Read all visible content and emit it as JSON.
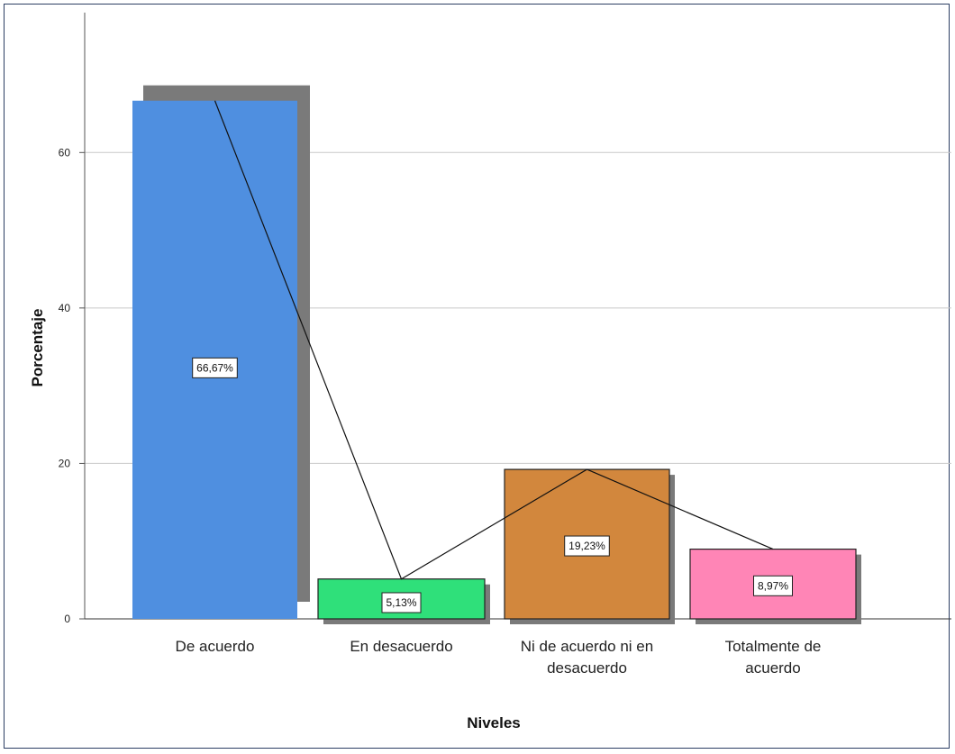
{
  "chart_data": {
    "type": "bar",
    "categories": [
      [
        "De acuerdo"
      ],
      [
        "En desacuerdo"
      ],
      [
        "Ni de acuerdo ni en",
        "desacuerdo"
      ],
      [
        "Totalmente de",
        "acuerdo"
      ]
    ],
    "values": [
      66.67,
      5.13,
      19.23,
      8.97
    ],
    "data_labels": [
      "66,67%",
      "5,13%",
      "19,23%",
      "8,97%"
    ],
    "colors": [
      "#4f8fe0",
      "#2fe07a",
      "#d2873d",
      "#ff85b6"
    ],
    "shadow_color": "#7a7a7a",
    "xlabel": "Niveles",
    "ylabel": "Porcentaje",
    "ylim": [
      0,
      78
    ],
    "yticks": [
      0,
      20,
      40,
      60
    ],
    "ytick_labels": [
      "0",
      "20",
      "40",
      "60"
    ],
    "grid": true,
    "connecting_line": true
  }
}
